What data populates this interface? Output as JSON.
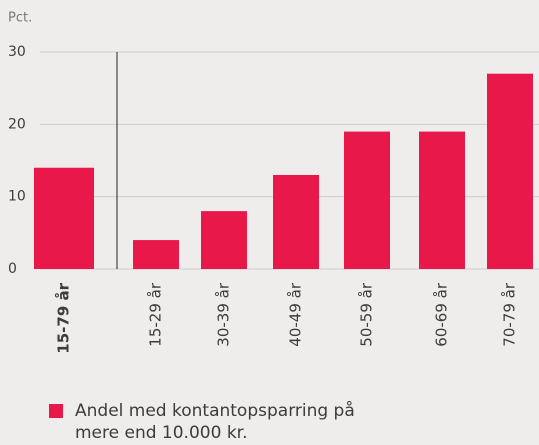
{
  "chart_data": {
    "type": "bar",
    "y_label": "Pct.",
    "categories": [
      "15-79 år",
      "15-29 år",
      "30-39 år",
      "40-49 år",
      "50-59 år",
      "60-69 år",
      "70-79 år"
    ],
    "series": [
      {
        "name": "Andel med kontantopsparring på mere end 10.000 kr.",
        "color": "#e8184a",
        "values": [
          14,
          4,
          8,
          13,
          19,
          19,
          27
        ]
      }
    ],
    "ylim": [
      0,
      30
    ],
    "yticks": [
      0,
      10,
      20,
      30
    ],
    "grid": true
  }
}
